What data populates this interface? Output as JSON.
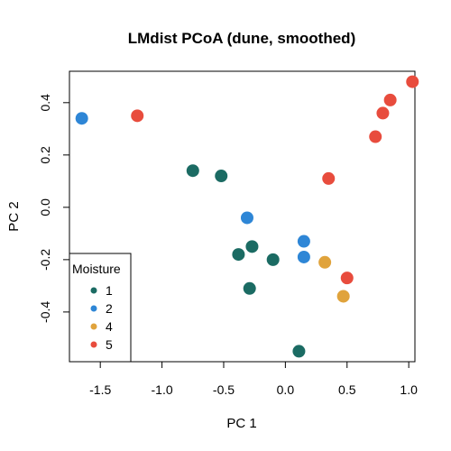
{
  "chart_data": {
    "type": "scatter",
    "title": "LMdist PCoA (dune, smoothed)",
    "xlabel": "PC 1",
    "ylabel": "PC 2",
    "xlim": [
      -1.75,
      1.05
    ],
    "ylim": [
      -0.59,
      0.52
    ],
    "xticks": [
      -1.5,
      -1.0,
      -0.5,
      0.0,
      0.5,
      1.0
    ],
    "xtick_labels": [
      "-1.5",
      "-1.0",
      "-0.5",
      "0.0",
      "0.5",
      "1.0"
    ],
    "yticks": [
      -0.4,
      -0.2,
      0.0,
      0.2,
      0.4
    ],
    "ytick_labels": [
      "-0.4",
      "-0.2",
      "0.0",
      "0.2",
      "0.4"
    ],
    "grid": false,
    "legend": {
      "title": "Moisture",
      "placement": "bottom-left",
      "entries": [
        "1",
        "2",
        "4",
        "5"
      ]
    },
    "colors": {
      "1": "#1b6b63",
      "2": "#2e86d6",
      "4": "#e0a33c",
      "5": "#e84c3d"
    },
    "series": [
      {
        "name": "1",
        "points": [
          {
            "x": -0.75,
            "y": 0.14
          },
          {
            "x": -0.52,
            "y": 0.12
          },
          {
            "x": -0.27,
            "y": -0.15
          },
          {
            "x": -0.38,
            "y": -0.18
          },
          {
            "x": -0.1,
            "y": -0.2
          },
          {
            "x": -0.29,
            "y": -0.31
          },
          {
            "x": 0.11,
            "y": -0.55
          }
        ]
      },
      {
        "name": "2",
        "points": [
          {
            "x": -1.65,
            "y": 0.34
          },
          {
            "x": -0.31,
            "y": -0.04
          },
          {
            "x": 0.15,
            "y": -0.13
          },
          {
            "x": 0.15,
            "y": -0.19
          }
        ]
      },
      {
        "name": "4",
        "points": [
          {
            "x": 0.32,
            "y": -0.21
          },
          {
            "x": 0.47,
            "y": -0.34
          }
        ]
      },
      {
        "name": "5",
        "points": [
          {
            "x": -1.2,
            "y": 0.35
          },
          {
            "x": 0.35,
            "y": 0.11
          },
          {
            "x": 0.5,
            "y": -0.27
          },
          {
            "x": 0.73,
            "y": 0.27
          },
          {
            "x": 0.79,
            "y": 0.36
          },
          {
            "x": 0.85,
            "y": 0.41
          },
          {
            "x": 1.03,
            "y": 0.48
          }
        ]
      }
    ]
  }
}
